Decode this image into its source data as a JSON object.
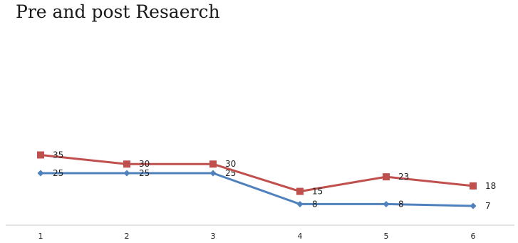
{
  "chart_data": {
    "type": "line",
    "title": "Pre and post Resaerch",
    "x": [
      1,
      2,
      3,
      4,
      5,
      6
    ],
    "categories": [
      "1",
      "2",
      "3",
      "4",
      "5",
      "6"
    ],
    "series": [
      {
        "values": [
          25,
          25,
          25,
          8,
          8,
          7
        ],
        "color": "#4f81bd",
        "marker": "diamond"
      },
      {
        "values": [
          35,
          30,
          30,
          15,
          23,
          18
        ],
        "color": "#c0504d",
        "marker": "square"
      }
    ],
    "data_labels": true,
    "grid": false,
    "ylim": [
      0,
      35
    ]
  }
}
